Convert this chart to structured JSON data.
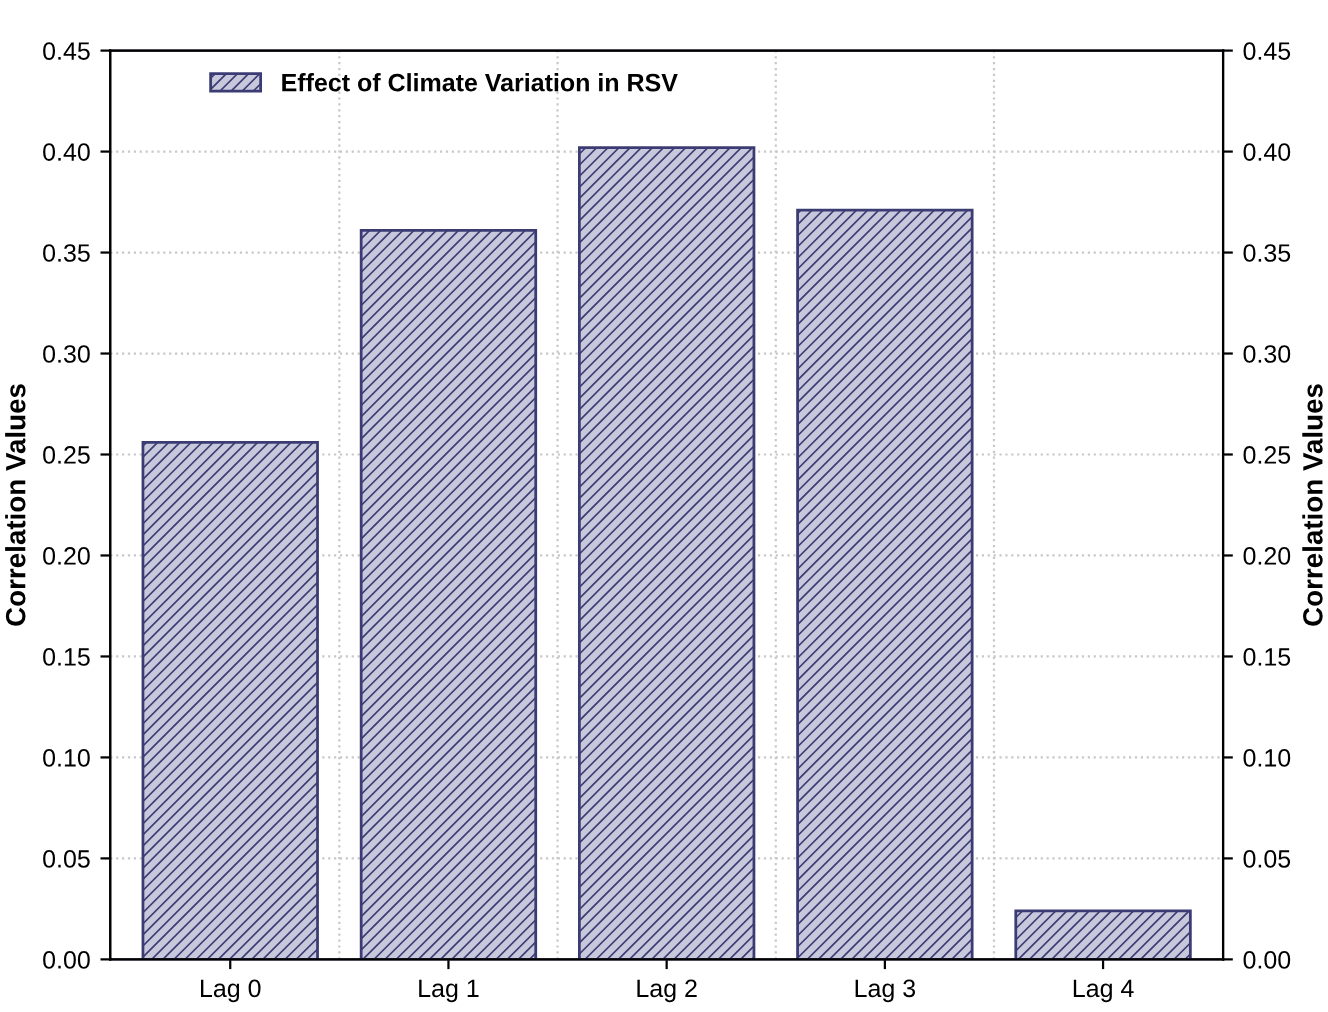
{
  "chart_data": {
    "type": "bar",
    "categories": [
      "Lag 0",
      "Lag 1",
      "Lag 2",
      "Lag 3",
      "Lag 4"
    ],
    "series": [
      {
        "name": "Effect of Climate Variation in RSV",
        "color": "#3c3c74",
        "values": [
          0.256,
          0.361,
          0.402,
          0.371,
          0.024
        ]
      }
    ],
    "ylabel": "Correlation Values",
    "y2label": "Correlation Values",
    "ylim": [
      0,
      0.45
    ],
    "yticks": [
      {
        "value": 0,
        "label": "0.00"
      },
      {
        "value": 0.05,
        "label": "0.05"
      },
      {
        "value": 0.1,
        "label": "0.10"
      },
      {
        "value": 0.15,
        "label": "0.15"
      },
      {
        "value": 0.2,
        "label": "0.20"
      },
      {
        "value": 0.25,
        "label": "0.25"
      },
      {
        "value": 0.3,
        "label": "0.30"
      },
      {
        "value": 0.35,
        "label": "0.35"
      },
      {
        "value": 0.4,
        "label": "0.40"
      },
      {
        "value": 0.45,
        "label": "0.45"
      }
    ],
    "y2lim": [
      0,
      0.45
    ],
    "y2ticks": [
      {
        "value": 0,
        "label": "0.00"
      },
      {
        "value": 0.05,
        "label": "0.05"
      },
      {
        "value": 0.1,
        "label": "0.10"
      },
      {
        "value": 0.15,
        "label": "0.15"
      },
      {
        "value": 0.2,
        "label": "0.20"
      },
      {
        "value": 0.25,
        "label": "0.25"
      },
      {
        "value": 0.3,
        "label": "0.30"
      },
      {
        "value": 0.35,
        "label": "0.35"
      },
      {
        "value": 0.4,
        "label": "0.40"
      },
      {
        "value": 0.45,
        "label": "0.45"
      }
    ],
    "grid": true,
    "legend": "top left"
  }
}
